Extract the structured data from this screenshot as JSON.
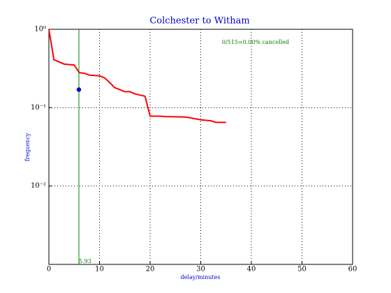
{
  "chart_data": {
    "type": "line",
    "title": "Colchester to Witham",
    "xlabel": "delay/minutes",
    "ylabel": "frequency",
    "annotation": "0/515=0.00% cancelled",
    "x": [
      0,
      1,
      3,
      5,
      6,
      7,
      8,
      10,
      11,
      12,
      13,
      14,
      15,
      16,
      17,
      19,
      20,
      22,
      23,
      27,
      28,
      30,
      32,
      33,
      35
    ],
    "series": [
      {
        "color": "#ff0000",
        "values": [
          1.0,
          0.41,
          0.36,
          0.35,
          0.28,
          0.275,
          0.26,
          0.255,
          0.24,
          0.21,
          0.18,
          0.17,
          0.16,
          0.16,
          0.15,
          0.14,
          0.078,
          0.078,
          0.077,
          0.076,
          0.074,
          0.07,
          0.068,
          0.065,
          0.065
        ]
      }
    ],
    "vline": {
      "x": 5.93,
      "color": "#008000"
    },
    "point": {
      "x": 5.93,
      "y": 0.17,
      "color": "#0000ff"
    },
    "xlim": [
      0,
      60
    ],
    "xticks": [
      0,
      10,
      20,
      30,
      40,
      50,
      60
    ],
    "ylim": [
      0.001,
      1
    ],
    "log_y": true,
    "yticks": [
      {
        "value": 1,
        "label": "10⁰"
      },
      {
        "value": 0.1,
        "label": "10⁻¹"
      },
      {
        "value": 0.01,
        "label": "10⁻²"
      }
    ],
    "grid": true
  }
}
